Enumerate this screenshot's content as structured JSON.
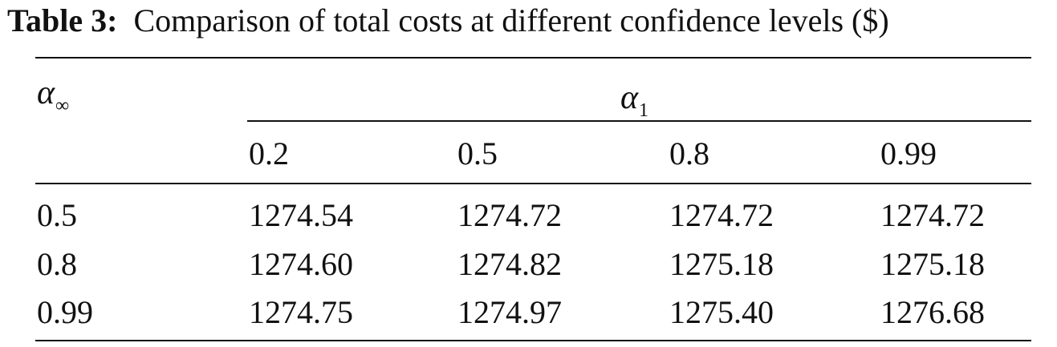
{
  "table": {
    "caption_label": "Table 3:",
    "caption_text": "Comparison of total costs at different confidence levels ($)",
    "row_header_symbol": "α",
    "row_header_subscript": "∞",
    "col_group_symbol": "α",
    "col_group_subscript": "1",
    "columns": [
      "0.2",
      "0.5",
      "0.8",
      "0.99"
    ],
    "rows": [
      {
        "alpha_inf": "0.5",
        "values": [
          "1274.54",
          "1274.72",
          "1274.72",
          "1274.72"
        ]
      },
      {
        "alpha_inf": "0.8",
        "values": [
          "1274.60",
          "1274.82",
          "1275.18",
          "1275.18"
        ]
      },
      {
        "alpha_inf": "0.99",
        "values": [
          "1274.75",
          "1274.97",
          "1275.40",
          "1276.68"
        ]
      }
    ]
  }
}
